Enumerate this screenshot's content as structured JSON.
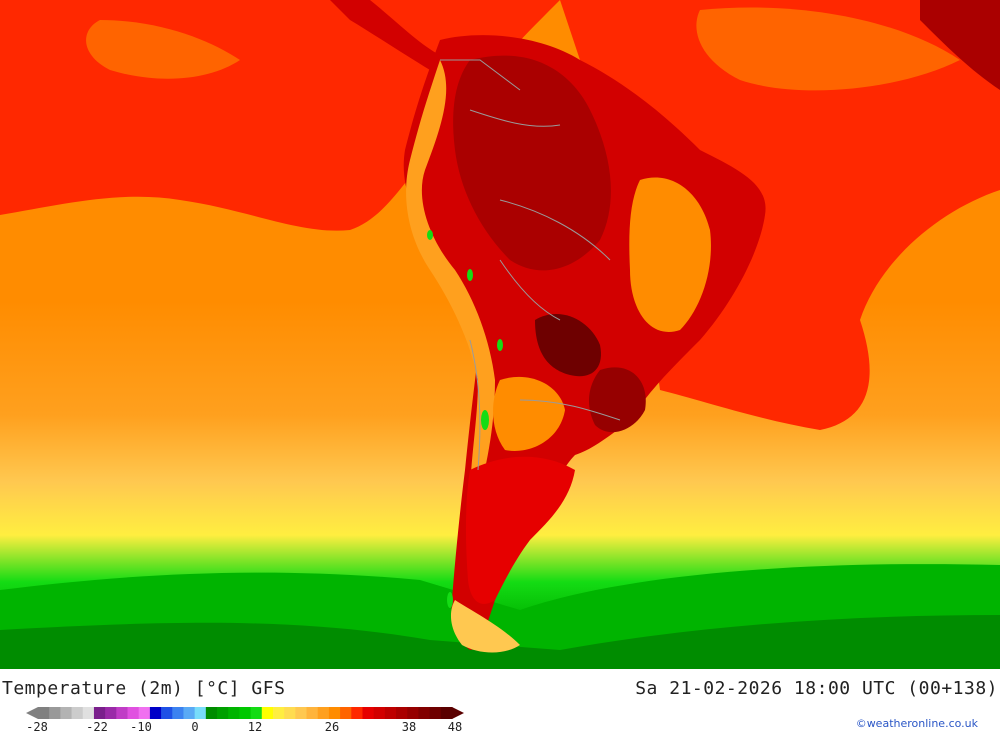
{
  "title": "Temperature (2m) [°C] GFS",
  "datetime": "Sa 21-02-2026 18:00 UTC (00+138)",
  "credit": "©weatheronline.co.uk",
  "legend": {
    "ticks": [
      "-28",
      "-22",
      "-10",
      "0",
      "12",
      "26",
      "38",
      "48"
    ],
    "colors": [
      "#808080",
      "#999999",
      "#b3b3b3",
      "#cccccc",
      "#e0e0e0",
      "#7a1f8c",
      "#9a2aa8",
      "#c03cc6",
      "#e050e0",
      "#f070f0",
      "#0000c8",
      "#1e50e6",
      "#3c82f0",
      "#5aaaf5",
      "#78dcfa",
      "#008c00",
      "#00a000",
      "#00b400",
      "#00c800",
      "#14dc14",
      "#ffff00",
      "#ffee40",
      "#ffdc50",
      "#ffc850",
      "#ffb43c",
      "#ffa01e",
      "#ff8c00",
      "#ff6400",
      "#ff2800",
      "#e60000",
      "#d20000",
      "#be0000",
      "#aa0000",
      "#960000",
      "#820000",
      "#6e0000",
      "#5a0000"
    ]
  }
}
